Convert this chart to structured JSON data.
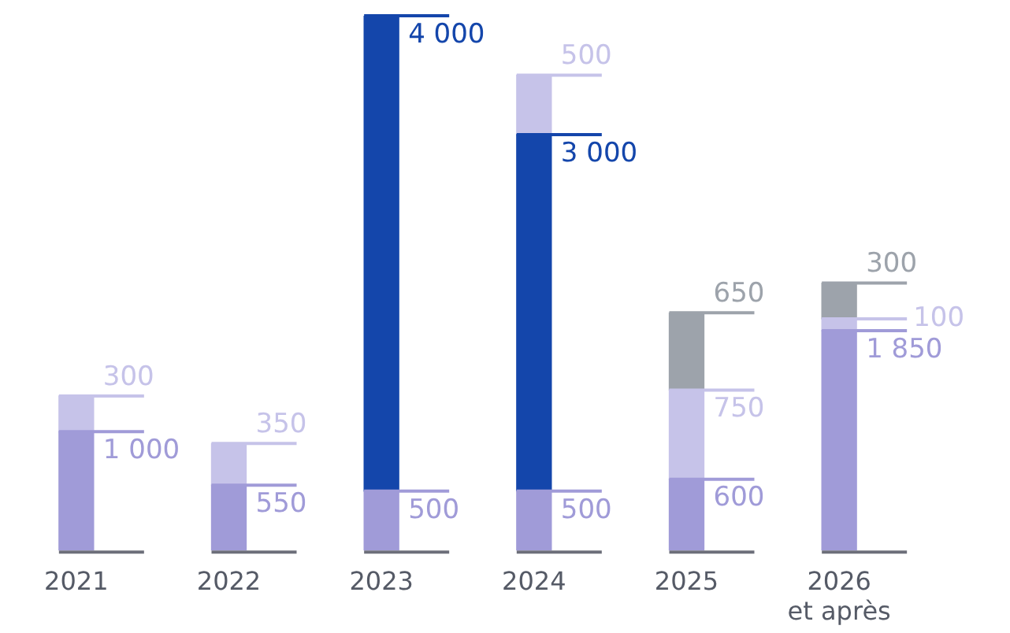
{
  "chart_data": {
    "type": "bar",
    "stacked": true,
    "tick_labels": "x",
    "categories": [
      "2021",
      "2022",
      "2023",
      "2024",
      "2025",
      "2026\net après"
    ],
    "series": [
      {
        "color": "#a09bd8",
        "values": [
          1000,
          550,
          500,
          500,
          600,
          1850
        ],
        "value_labels": [
          "1 000",
          "550",
          "500",
          "500",
          "600",
          "1 850"
        ]
      },
      {
        "color": "#1446ab",
        "values": [
          null,
          null,
          4000,
          3000,
          null,
          null
        ],
        "value_labels": [
          null,
          null,
          "4 000",
          "3 000",
          null,
          null
        ]
      },
      {
        "color": "#c6c3e9",
        "values": [
          300,
          350,
          null,
          500,
          750,
          100
        ],
        "value_labels": [
          "300",
          "350",
          null,
          "500",
          "750",
          "100"
        ]
      },
      {
        "color": "#9da3ab",
        "values": [
          null,
          null,
          null,
          null,
          650,
          300
        ],
        "value_labels": [
          null,
          null,
          null,
          null,
          "650",
          "300"
        ]
      }
    ]
  }
}
